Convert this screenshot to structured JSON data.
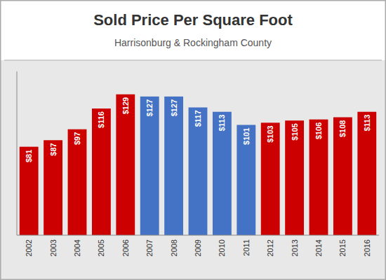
{
  "chart_data": {
    "type": "bar",
    "title": "Sold Price Per Square Foot",
    "subtitle": "Harrisonburg & Rockingham County",
    "categories": [
      "2002",
      "2003",
      "2004",
      "2005",
      "2006",
      "2007",
      "2008",
      "2009",
      "2010",
      "2011",
      "2012",
      "2013",
      "2014",
      "2015",
      "2016"
    ],
    "values": [
      81,
      87,
      97,
      116,
      129,
      127,
      127,
      117,
      113,
      101,
      103,
      105,
      106,
      108,
      113
    ],
    "value_labels": [
      "$81",
      "$87",
      "$97",
      "$116",
      "$129",
      "$127",
      "$127",
      "$117",
      "$113",
      "$101",
      "$103",
      "$105",
      "$106",
      "$108",
      "$113"
    ],
    "colors": [
      "#cc0000",
      "#cc0000",
      "#cc0000",
      "#cc0000",
      "#cc0000",
      "#4472c4",
      "#4472c4",
      "#4472c4",
      "#4472c4",
      "#4472c4",
      "#cc0000",
      "#cc0000",
      "#cc0000",
      "#cc0000",
      "#cc0000"
    ],
    "ylim": [
      0,
      150
    ],
    "grid": false,
    "data_labels": true,
    "tick_labels": "x"
  }
}
